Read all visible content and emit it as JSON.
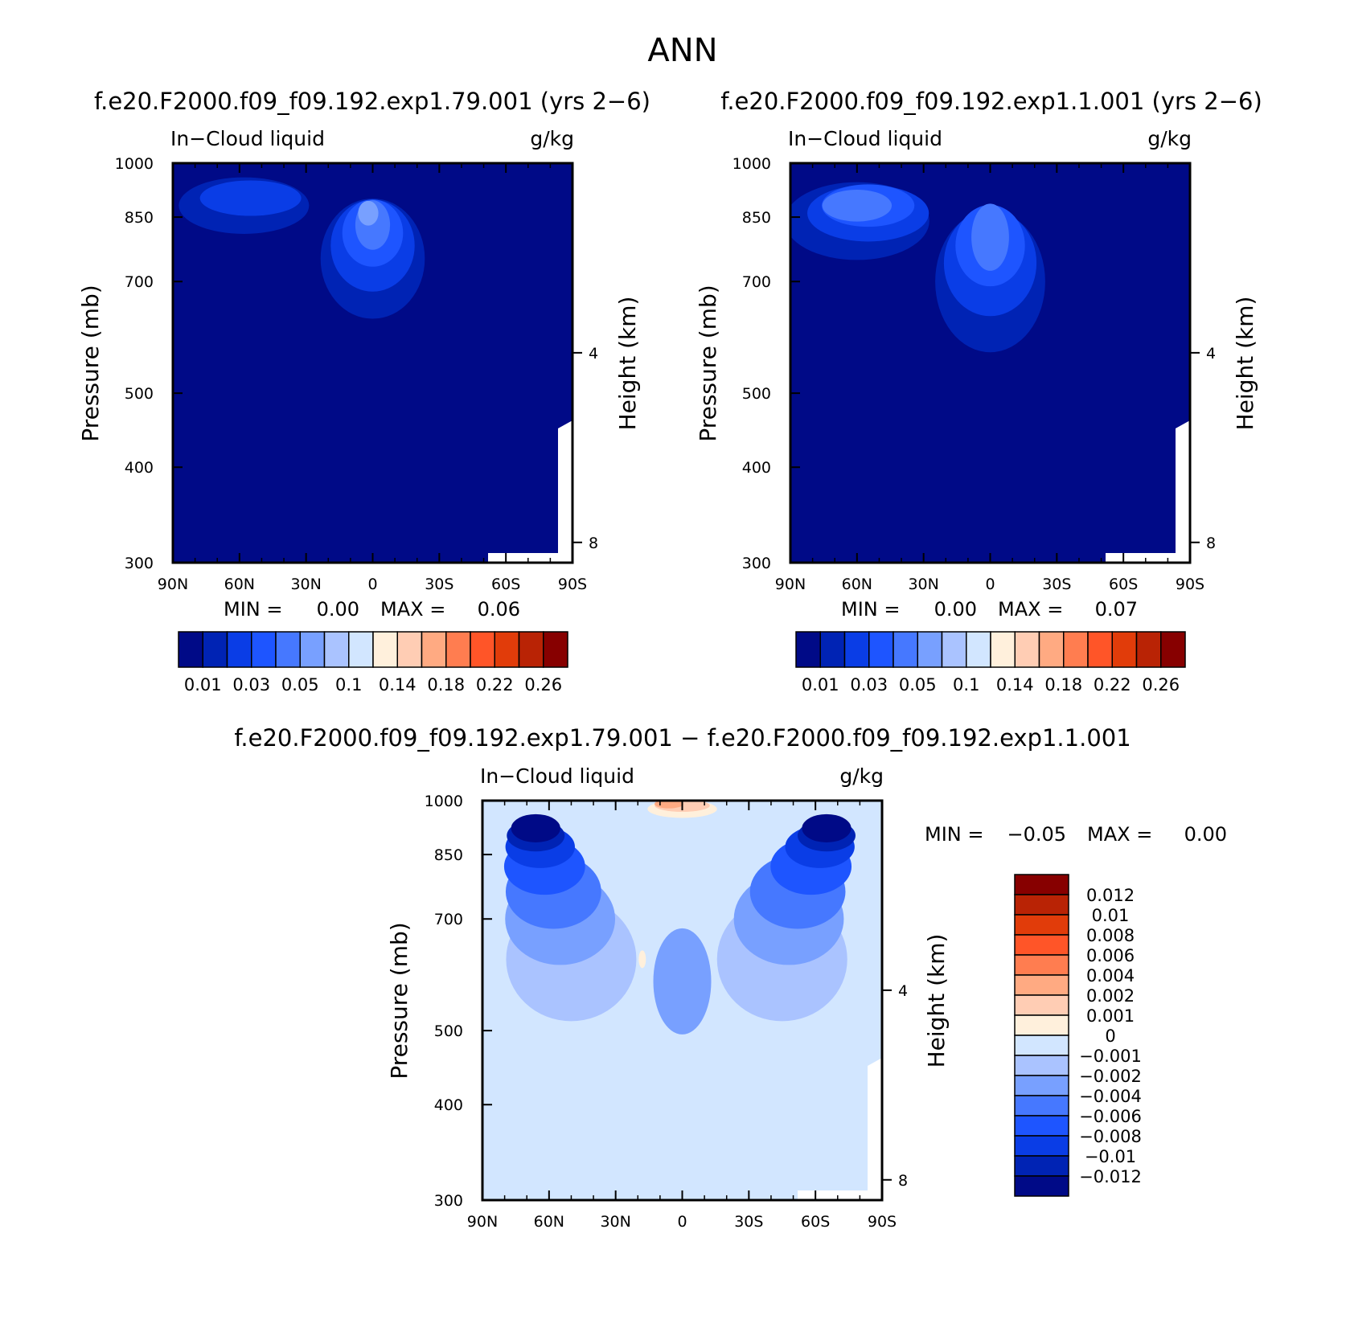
{
  "figure": {
    "title": "ANN",
    "colors": {
      "seq": [
        "#000a87",
        "#0023b4",
        "#0a3de6",
        "#1e55ff",
        "#4678ff",
        "#78a0ff",
        "#aac3ff",
        "#d2e6ff",
        "#fff0dc",
        "#ffcdb4",
        "#ffaa82",
        "#ff7d50",
        "#ff5528",
        "#e13c0a",
        "#b92305",
        "#870000"
      ],
      "diff": [
        "#000a87",
        "#0023b4",
        "#0a3de6",
        "#1e55ff",
        "#4678ff",
        "#78a0ff",
        "#aac3ff",
        "#d2e6ff",
        "#fff0dc",
        "#ffcdb4",
        "#ffaa82",
        "#ff7d50",
        "#ff5528",
        "#e13c0a",
        "#b92305",
        "#870000"
      ]
    }
  },
  "chart_data": [
    {
      "type": "contour",
      "panel": "top-left",
      "title": "f.e20.F2000.f09_f09.192.exp1.79.001 (yrs 2−6)",
      "left_label": "In−Cloud liquid",
      "units": "g/kg",
      "xlabel": "",
      "ylabel": "Pressure (mb)",
      "y2label": "Height (km)",
      "x_ticks": [
        "90N",
        "60N",
        "30N",
        "0",
        "30S",
        "60S",
        "90S"
      ],
      "y_ticks": [
        "300",
        "400",
        "500",
        "700",
        "850",
        "1000"
      ],
      "y2_ticks": [
        "8",
        "4"
      ],
      "ylim_mb": [
        1000,
        300
      ],
      "stats": {
        "min_label": "MIN =",
        "min": "0.00",
        "max_label": "MAX =",
        "max": "0.06"
      },
      "colorbar_labels": [
        "0.01",
        "0.03",
        "0.05",
        "0.1",
        "0.14",
        "0.18",
        "0.22",
        "0.26"
      ],
      "features": [
        {
          "level": 1,
          "lat": 0,
          "p": 750,
          "a": 3.6,
          "b": 3.4
        },
        {
          "level": 1,
          "lat": 58,
          "p": 880,
          "a": 4.5,
          "b": 1.6
        },
        {
          "level": 2,
          "lat": 0,
          "p": 780,
          "a": 2.9,
          "b": 2.6
        },
        {
          "level": 2,
          "lat": 55,
          "p": 900,
          "a": 3.5,
          "b": 1.0
        },
        {
          "level": 3,
          "lat": 0,
          "p": 810,
          "a": 2.1,
          "b": 1.9
        },
        {
          "level": 4,
          "lat": 0,
          "p": 830,
          "a": 1.2,
          "b": 1.4
        },
        {
          "level": 5,
          "lat": 2,
          "p": 860,
          "a": 0.7,
          "b": 0.7
        }
      ]
    },
    {
      "type": "contour",
      "panel": "top-right",
      "title": "f.e20.F2000.f09_f09.192.exp1.1.001 (yrs 2−6)",
      "left_label": "In−Cloud liquid",
      "units": "g/kg",
      "xlabel": "",
      "ylabel": "Pressure (mb)",
      "y2label": "Height (km)",
      "x_ticks": [
        "90N",
        "60N",
        "30N",
        "0",
        "30S",
        "60S",
        "90S"
      ],
      "y_ticks": [
        "300",
        "400",
        "500",
        "700",
        "850",
        "1000"
      ],
      "y2_ticks": [
        "8",
        "4"
      ],
      "ylim_mb": [
        1000,
        300
      ],
      "stats": {
        "min_label": "MIN =",
        "min": "0.00",
        "max_label": "MAX =",
        "max": "0.07"
      },
      "colorbar_labels": [
        "0.01",
        "0.03",
        "0.05",
        "0.1",
        "0.14",
        "0.18",
        "0.22",
        "0.26"
      ],
      "features": [
        {
          "level": 1,
          "lat": 0,
          "p": 700,
          "a": 3.8,
          "b": 4.0
        },
        {
          "level": 1,
          "lat": 60,
          "p": 840,
          "a": 5.0,
          "b": 2.2
        },
        {
          "level": 2,
          "lat": 0,
          "p": 740,
          "a": 3.2,
          "b": 3.0
        },
        {
          "level": 2,
          "lat": 55,
          "p": 860,
          "a": 4.2,
          "b": 1.6
        },
        {
          "level": 3,
          "lat": 0,
          "p": 780,
          "a": 2.4,
          "b": 2.3
        },
        {
          "level": 3,
          "lat": 55,
          "p": 880,
          "a": 3.2,
          "b": 1.2
        },
        {
          "level": 4,
          "lat": 0,
          "p": 800,
          "a": 1.3,
          "b": 1.9
        },
        {
          "level": 4,
          "lat": 60,
          "p": 880,
          "a": 2.4,
          "b": 0.9
        }
      ]
    },
    {
      "type": "contour",
      "panel": "bottom",
      "title": "f.e20.F2000.f09_f09.192.exp1.79.001 − f.e20.F2000.f09_f09.192.exp1.1.001",
      "left_label": "In−Cloud liquid",
      "units": "g/kg",
      "xlabel": "",
      "ylabel": "Pressure (mb)",
      "y2label": "Height (km)",
      "x_ticks": [
        "90N",
        "60N",
        "30N",
        "0",
        "30S",
        "60S",
        "90S"
      ],
      "y_ticks": [
        "300",
        "400",
        "500",
        "700",
        "850",
        "1000"
      ],
      "y2_ticks": [
        "8",
        "4"
      ],
      "ylim_mb": [
        1000,
        300
      ],
      "stats": {
        "min_label": "MIN =",
        "min": "−0.05",
        "max_label": "MAX =",
        "max": "0.00"
      },
      "colorbar_labels": [
        "0.012",
        "0.01",
        "0.008",
        "0.006",
        "0.004",
        "0.002",
        "0.001",
        "0",
        "−0.001",
        "−0.002",
        "−0.004",
        "−0.006",
        "−0.008",
        "−0.01",
        "−0.012"
      ],
      "features": [
        {
          "level": 6,
          "lat": -45,
          "p": 620,
          "a": 4.5,
          "b": 3.5
        },
        {
          "level": 6,
          "lat": 50,
          "p": 620,
          "a": 4.5,
          "b": 3.5
        },
        {
          "level": 5,
          "lat": -48,
          "p": 700,
          "a": 3.8,
          "b": 2.6
        },
        {
          "level": 5,
          "lat": 55,
          "p": 700,
          "a": 3.8,
          "b": 2.6
        },
        {
          "level": 5,
          "lat": 0,
          "p": 580,
          "a": 2.0,
          "b": 3.0
        },
        {
          "level": 4,
          "lat": -52,
          "p": 760,
          "a": 3.3,
          "b": 2.1
        },
        {
          "level": 4,
          "lat": 58,
          "p": 760,
          "a": 3.3,
          "b": 2.1
        },
        {
          "level": 3,
          "lat": -58,
          "p": 820,
          "a": 2.8,
          "b": 1.6
        },
        {
          "level": 3,
          "lat": 62,
          "p": 820,
          "a": 2.8,
          "b": 1.6
        },
        {
          "level": 2,
          "lat": -62,
          "p": 870,
          "a": 2.4,
          "b": 1.2
        },
        {
          "level": 2,
          "lat": 64,
          "p": 870,
          "a": 2.4,
          "b": 1.2
        },
        {
          "level": 1,
          "lat": -65,
          "p": 900,
          "a": 2.0,
          "b": 0.9
        },
        {
          "level": 1,
          "lat": 66,
          "p": 900,
          "a": 2.0,
          "b": 0.9
        },
        {
          "level": 0,
          "lat": -65,
          "p": 920,
          "a": 1.7,
          "b": 0.8
        },
        {
          "level": 0,
          "lat": 66,
          "p": 920,
          "a": 1.7,
          "b": 0.8
        },
        {
          "level": 7,
          "lat": -20,
          "p": 600,
          "a": 0.7,
          "b": 2.2
        },
        {
          "level": 7,
          "lat": 17,
          "p": 620,
          "a": 0.7,
          "b": 1.8
        },
        {
          "level": 8,
          "lat": 18,
          "p": 620,
          "a": 0.25,
          "b": 0.5
        },
        {
          "level": 8,
          "lat": 0,
          "p": 975,
          "a": 2.4,
          "b": 0.5
        },
        {
          "level": 9,
          "lat": 0,
          "p": 985,
          "a": 1.9,
          "b": 0.35
        },
        {
          "level": 10,
          "lat": 6,
          "p": 990,
          "a": 1.0,
          "b": 0.25
        }
      ]
    }
  ]
}
